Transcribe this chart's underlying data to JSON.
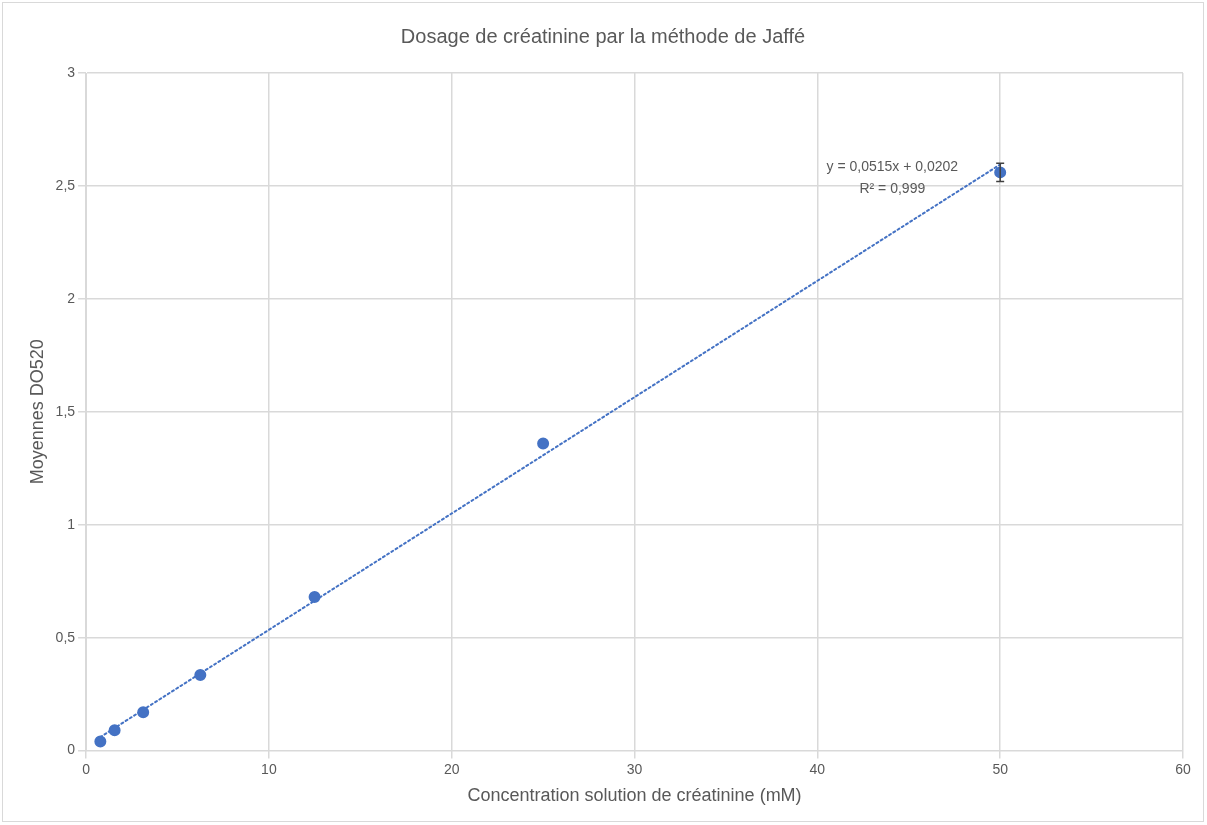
{
  "chart_data": {
    "type": "scatter",
    "title": "Dosage de créatinine par la méthode de Jaffé",
    "xlabel": "Concentration solution de créatinine (mM)",
    "ylabel": "Moyennes DO520",
    "x": [
      0.78125,
      1.5625,
      3.125,
      6.25,
      12.5,
      25,
      50
    ],
    "series": [
      {
        "type": "scatter",
        "color": "#4472c4",
        "marker": "circle",
        "values": [
          0.04,
          0.09,
          0.17,
          0.335,
          0.68,
          1.36,
          2.56
        ],
        "errors": [
          null,
          null,
          null,
          null,
          null,
          null,
          [
            2.52,
            2.6
          ]
        ]
      },
      {
        "type": "line",
        "color": "#4472c4",
        "line_style": "dotted",
        "marker": "none",
        "x": [
          0.78125,
          50
        ],
        "values": [
          0.06,
          2.595
        ]
      }
    ],
    "annotations": [
      "y = 0,0515x + 0,0202",
      "R² = 0,999"
    ],
    "xlim": [
      0,
      60
    ],
    "xticks": [
      0,
      10,
      20,
      30,
      40,
      50,
      60
    ],
    "ylim": [
      0,
      3
    ],
    "yticks": [
      0,
      {
        "value": 0.5,
        "label": "0,5"
      },
      1,
      {
        "value": 1.5,
        "label": "1,5"
      },
      2,
      {
        "value": 2.5,
        "label": "2,5"
      },
      3
    ],
    "grid": true,
    "legend": false
  }
}
